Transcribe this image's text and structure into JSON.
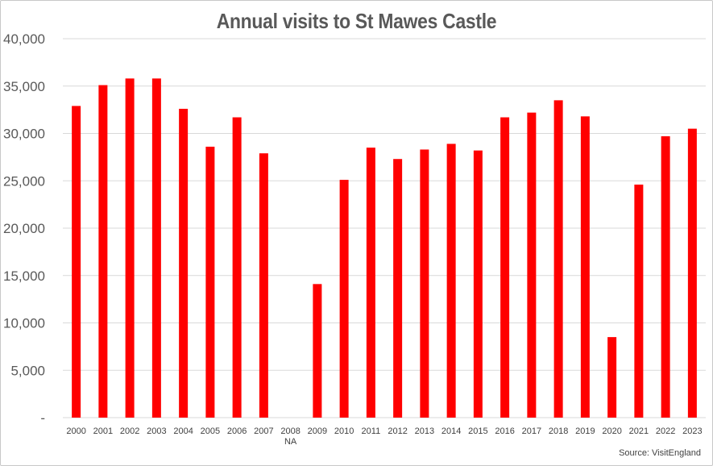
{
  "chart_data": {
    "type": "bar",
    "title": "Annual visits to St Mawes Castle",
    "xlabel": "",
    "ylabel": "",
    "categories": [
      "2000",
      "2001",
      "2002",
      "2003",
      "2004",
      "2005",
      "2006",
      "2007",
      "2008",
      "2009",
      "2010",
      "2011",
      "2012",
      "2013",
      "2014",
      "2015",
      "2016",
      "2017",
      "2018",
      "2019",
      "2020",
      "2021",
      "2022",
      "2023"
    ],
    "category_notes": {
      "2008": "NA"
    },
    "values": [
      32900,
      35100,
      35800,
      35800,
      32600,
      28600,
      31700,
      27900,
      null,
      14100,
      25100,
      28500,
      27300,
      28300,
      28900,
      28200,
      31700,
      32200,
      33500,
      31800,
      8500,
      24600,
      29700,
      30500
    ],
    "ylim": [
      0,
      40000
    ],
    "yticks": [
      0,
      5000,
      10000,
      15000,
      20000,
      25000,
      30000,
      35000,
      40000
    ],
    "ytick_labels": [
      "-",
      "5,000",
      "10,000",
      "15,000",
      "20,000",
      "25,000",
      "30,000",
      "35,000",
      "40,000"
    ],
    "grid": true,
    "bar_color": "#ff0000",
    "grid_color": "#d9d9d9",
    "source": "Source: VisitEngland"
  }
}
